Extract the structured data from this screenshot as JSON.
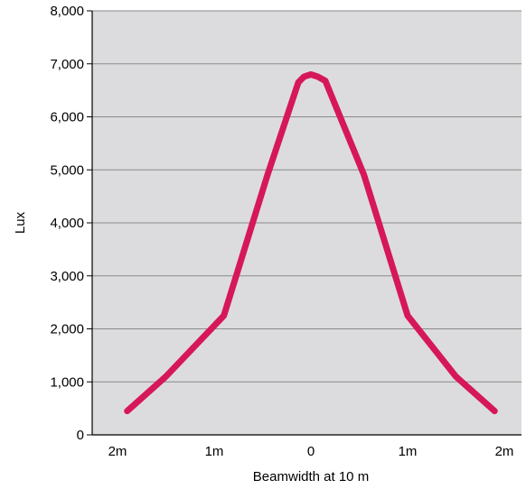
{
  "chart_data": {
    "type": "line",
    "title": "",
    "xlabel": "Beamwidth at 10 m",
    "ylabel": "Lux",
    "xlim": [
      -2,
      2
    ],
    "ylim": [
      0,
      8000
    ],
    "grid": "horizontal",
    "x_ticks": [
      {
        "value": -2,
        "label": "2m"
      },
      {
        "value": -1,
        "label": "1m"
      },
      {
        "value": 0,
        "label": "0"
      },
      {
        "value": 1,
        "label": "1m"
      },
      {
        "value": 2,
        "label": "2m"
      }
    ],
    "y_ticks": [
      {
        "value": 0,
        "label": "0"
      },
      {
        "value": 1000,
        "label": "1,000"
      },
      {
        "value": 2000,
        "label": "2,000"
      },
      {
        "value": 3000,
        "label": "3,000"
      },
      {
        "value": 4000,
        "label": "4,000"
      },
      {
        "value": 5000,
        "label": "5,000"
      },
      {
        "value": 6000,
        "label": "6,000"
      },
      {
        "value": 7000,
        "label": "7,000"
      },
      {
        "value": 8000,
        "label": "8,000"
      }
    ],
    "series": [
      {
        "color": "#d6175a",
        "points": [
          {
            "x": -1.9,
            "y": 450
          },
          {
            "x": -1.5,
            "y": 1100
          },
          {
            "x": -0.9,
            "y": 2250
          },
          {
            "x": -0.45,
            "y": 4900
          },
          {
            "x": -0.13,
            "y": 6650
          },
          {
            "x": -0.07,
            "y": 6760
          },
          {
            "x": 0,
            "y": 6800
          },
          {
            "x": 0.07,
            "y": 6760
          },
          {
            "x": 0.15,
            "y": 6680
          },
          {
            "x": 0.55,
            "y": 4900
          },
          {
            "x": 1,
            "y": 2250
          },
          {
            "x": 1.5,
            "y": 1100
          },
          {
            "x": 1.9,
            "y": 450
          }
        ]
      }
    ]
  },
  "colors": {
    "plot_background": "#dcdcde",
    "grid": "#8a8a8a",
    "line": "#d6175a"
  }
}
